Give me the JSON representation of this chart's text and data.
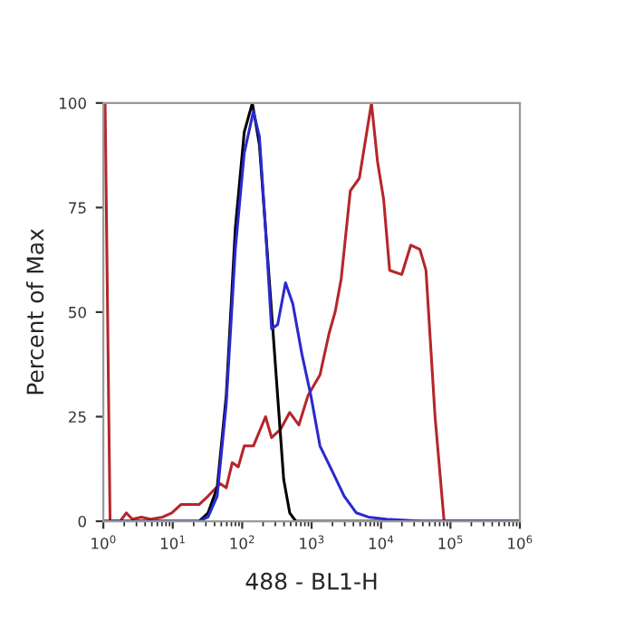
{
  "chart_data": {
    "type": "line",
    "xlabel": "488 - BL1-H",
    "ylabel": "Percent of Max",
    "log": "x",
    "xlim": [
      1,
      1000000
    ],
    "ylim": [
      0,
      100
    ],
    "yticks": [
      0,
      25,
      50,
      75,
      100
    ],
    "xticks": [
      {
        "value": 1,
        "label": "10$^{0}$"
      },
      {
        "value": 10,
        "label": "10$^{1}$"
      },
      {
        "value": 100,
        "label": "10$^{2}$"
      },
      {
        "value": 1000,
        "label": "10$^{3}$"
      },
      {
        "value": 10000,
        "label": "10$^{4}$"
      },
      {
        "value": 100000,
        "label": "10$^{5}$"
      },
      {
        "value": 1000000,
        "label": "10$^{6}$"
      }
    ],
    "grid": false,
    "legend": false,
    "marker": "none",
    "line_style": "solid",
    "series": [
      {
        "color": "#b5262a",
        "x": [
          1,
          1.06,
          1.25,
          1.75,
          2.14,
          2.62,
          3.54,
          4.79,
          7.15,
          9.67,
          13.1,
          23.9,
          32.2,
          48.2,
          58.9,
          71.9,
          87.9,
          107,
          145,
          217,
          265,
          358,
          484,
          655,
          885,
          1320,
          1790,
          2180,
          2670,
          3610,
          4870,
          7280,
          8900,
          10900,
          13300,
          19900,
          26800,
          36300,
          44400,
          60000,
          81000,
          1000000
        ],
        "values": [
          100,
          100,
          0,
          0,
          2,
          0.5,
          1,
          0.5,
          1,
          2,
          4,
          4,
          6,
          9,
          8,
          14,
          13,
          18,
          18,
          25,
          20,
          22,
          26,
          23,
          30,
          35,
          45,
          50,
          58,
          79,
          82,
          100,
          86,
          77,
          60,
          59,
          66,
          65,
          60,
          25,
          0,
          0
        ]
      },
      {
        "color": "#000000",
        "x": [
          1,
          23.9,
          32.2,
          43.6,
          58.9,
          79.6,
          107,
          140,
          177,
          240,
          324,
          396,
          484,
          592,
          1000000
        ],
        "values": [
          0,
          0,
          2,
          8,
          30,
          70,
          93,
          100,
          90,
          60,
          30,
          10,
          2,
          0,
          0
        ]
      },
      {
        "color": "#2a2ad0",
        "x": [
          1,
          23.9,
          32.2,
          43.6,
          58.9,
          79.6,
          107,
          145,
          177,
          217,
          265,
          324,
          421,
          536,
          724,
          977,
          1320,
          1980,
          2950,
          4410,
          6590,
          12000,
          40100,
          1000000
        ],
        "values": [
          0,
          0,
          1,
          6,
          28,
          65,
          88,
          98,
          92,
          70,
          46,
          47,
          57,
          52,
          40,
          30,
          18,
          12,
          6,
          2,
          1,
          0.5,
          0,
          0
        ]
      }
    ]
  }
}
